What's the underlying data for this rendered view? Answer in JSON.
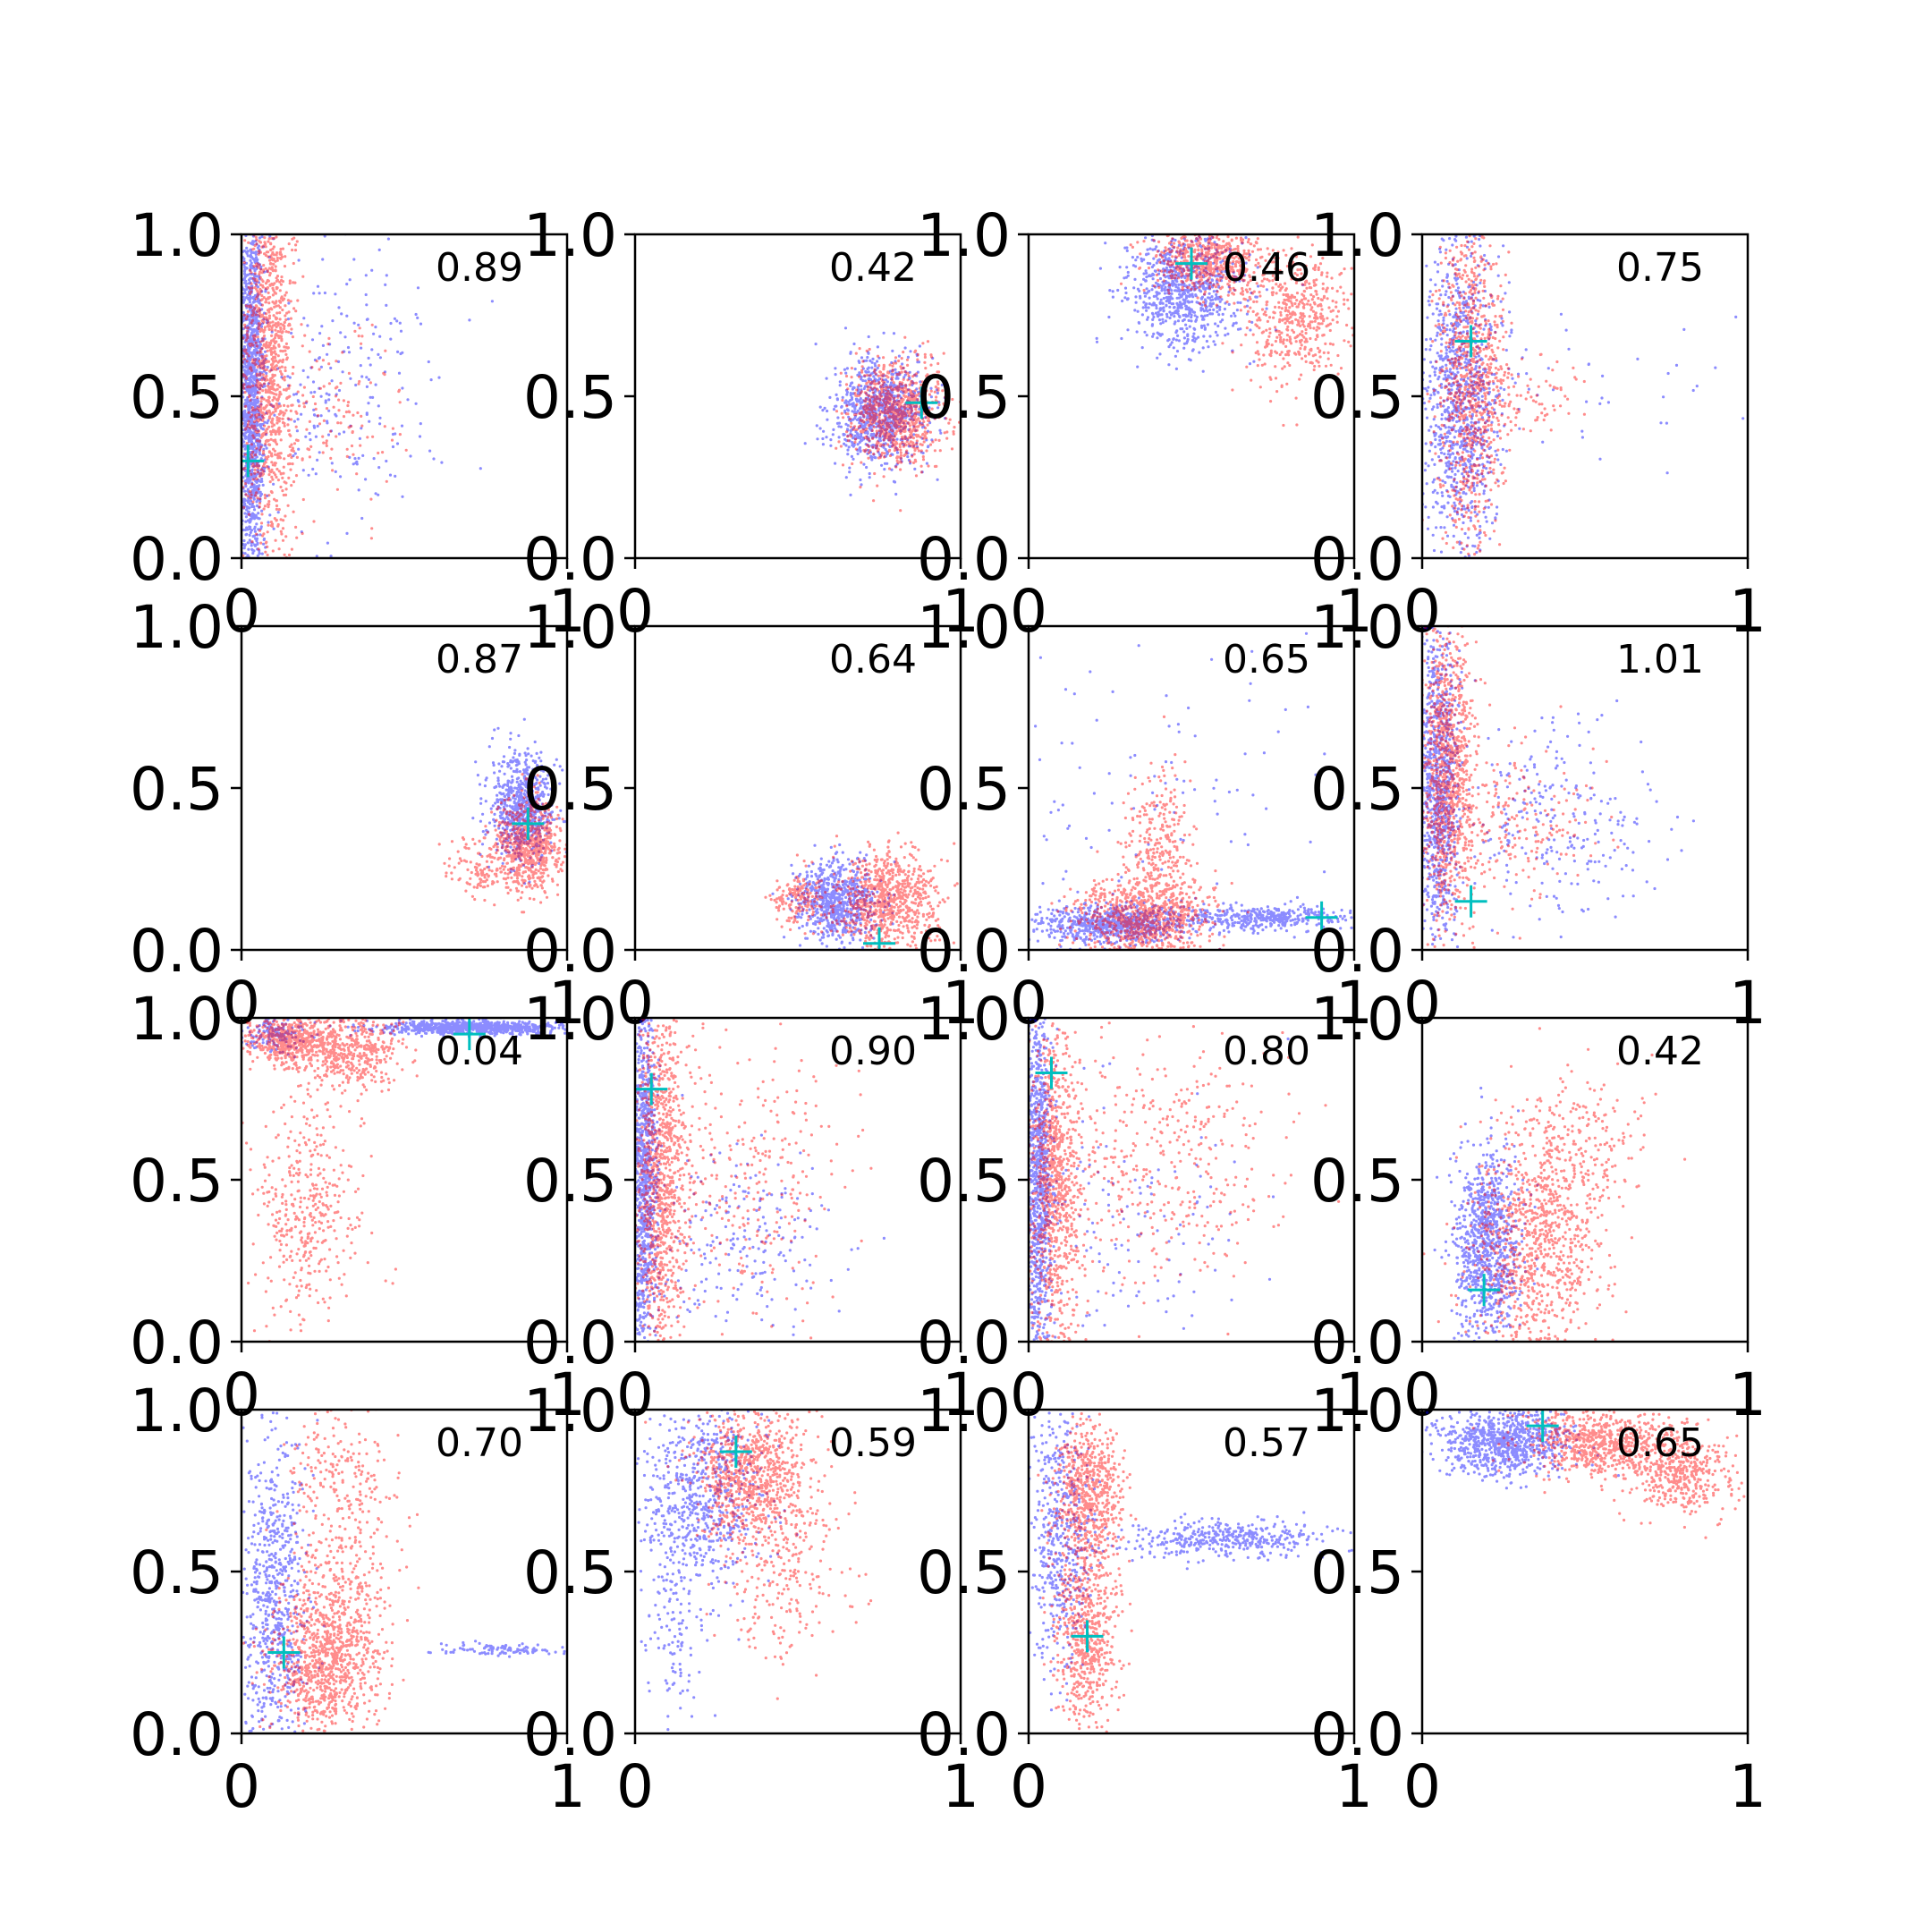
{
  "chart_data": {
    "type": "scatter",
    "layout": {
      "rows": 4,
      "cols": 4
    },
    "colors": {
      "series_a": "#0000ff",
      "series_b": "#ff0000",
      "marker": "#00bfbf",
      "axis": "#000000"
    },
    "marker_shape": "plus",
    "xlim": [
      0,
      1
    ],
    "ylim": [
      0,
      1
    ],
    "x_tick_labels": [
      "0",
      "1"
    ],
    "y_tick_labels": [
      "0.0",
      "0.5",
      "1.0"
    ],
    "panels": [
      {
        "value_label": "0.89",
        "marker": [
          0.02,
          0.3
        ],
        "blue": [
          [
            0.03,
            0.5,
            0.02,
            0.3,
            1400
          ],
          [
            0.3,
            0.5,
            0.15,
            0.25,
            250
          ]
        ],
        "red": [
          [
            0.08,
            0.6,
            0.04,
            0.3,
            1100
          ],
          [
            0.25,
            0.45,
            0.12,
            0.15,
            150
          ]
        ]
      },
      {
        "value_label": "0.42",
        "marker": [
          0.88,
          0.48
        ],
        "blue": [
          [
            0.75,
            0.45,
            0.07,
            0.08,
            900
          ]
        ],
        "red": [
          [
            0.8,
            0.45,
            0.07,
            0.08,
            900
          ]
        ]
      },
      {
        "value_label": "0.46",
        "marker": [
          0.5,
          0.91
        ],
        "blue": [
          [
            0.48,
            0.82,
            0.09,
            0.09,
            800
          ]
        ],
        "red": [
          [
            0.55,
            0.92,
            0.08,
            0.05,
            600
          ],
          [
            0.82,
            0.75,
            0.08,
            0.1,
            500
          ]
        ]
      },
      {
        "value_label": "0.75",
        "marker": [
          0.15,
          0.67
        ],
        "blue": [
          [
            0.12,
            0.5,
            0.06,
            0.25,
            1000
          ],
          [
            0.5,
            0.5,
            0.2,
            0.1,
            40
          ]
        ],
        "red": [
          [
            0.15,
            0.55,
            0.05,
            0.28,
            900
          ],
          [
            0.3,
            0.5,
            0.1,
            0.06,
            100
          ]
        ]
      },
      {
        "value_label": "0.87",
        "marker": [
          0.88,
          0.39
        ],
        "blue": [
          [
            0.86,
            0.44,
            0.05,
            0.08,
            700
          ]
        ],
        "red": [
          [
            0.88,
            0.32,
            0.05,
            0.07,
            700
          ],
          [
            0.72,
            0.25,
            0.05,
            0.05,
            100
          ]
        ]
      },
      {
        "value_label": "0.64",
        "marker": [
          0.75,
          0.02
        ],
        "blue": [
          [
            0.62,
            0.15,
            0.06,
            0.06,
            700
          ]
        ],
        "red": [
          [
            0.78,
            0.15,
            0.08,
            0.08,
            800
          ],
          [
            0.5,
            0.15,
            0.04,
            0.04,
            150
          ]
        ]
      },
      {
        "value_label": "0.65",
        "marker": [
          0.9,
          0.1
        ],
        "blue": [
          [
            0.25,
            0.08,
            0.12,
            0.03,
            700
          ],
          [
            0.72,
            0.1,
            0.15,
            0.02,
            400
          ],
          [
            0.35,
            0.45,
            0.3,
            0.3,
            120
          ]
        ],
        "red": [
          [
            0.35,
            0.1,
            0.1,
            0.06,
            800
          ],
          [
            0.4,
            0.3,
            0.05,
            0.12,
            300
          ]
        ]
      },
      {
        "value_label": "1.01",
        "marker": [
          0.15,
          0.15
        ],
        "blue": [
          [
            0.05,
            0.5,
            0.03,
            0.25,
            900
          ],
          [
            0.4,
            0.4,
            0.15,
            0.15,
            250
          ]
        ],
        "red": [
          [
            0.08,
            0.55,
            0.04,
            0.25,
            1000
          ],
          [
            0.3,
            0.4,
            0.12,
            0.12,
            200
          ]
        ]
      },
      {
        "value_label": "0.04",
        "marker": [
          0.7,
          0.95
        ],
        "blue": [
          [
            0.72,
            0.97,
            0.15,
            0.01,
            800
          ],
          [
            0.1,
            0.95,
            0.05,
            0.03,
            150
          ]
        ],
        "red": [
          [
            0.15,
            0.93,
            0.07,
            0.04,
            600
          ],
          [
            0.35,
            0.9,
            0.08,
            0.06,
            400
          ],
          [
            0.2,
            0.4,
            0.08,
            0.18,
            400
          ]
        ]
      },
      {
        "value_label": "0.90",
        "marker": [
          0.05,
          0.78
        ],
        "blue": [
          [
            0.03,
            0.5,
            0.02,
            0.27,
            900
          ],
          [
            0.35,
            0.3,
            0.15,
            0.15,
            200
          ]
        ],
        "red": [
          [
            0.08,
            0.5,
            0.04,
            0.27,
            1000
          ],
          [
            0.35,
            0.5,
            0.15,
            0.2,
            300
          ]
        ]
      },
      {
        "value_label": "0.80",
        "marker": [
          0.07,
          0.83
        ],
        "blue": [
          [
            0.03,
            0.5,
            0.02,
            0.27,
            900
          ],
          [
            0.3,
            0.35,
            0.2,
            0.2,
            150
          ]
        ],
        "red": [
          [
            0.08,
            0.5,
            0.04,
            0.27,
            900
          ],
          [
            0.4,
            0.55,
            0.18,
            0.2,
            400
          ]
        ]
      },
      {
        "value_label": "0.42",
        "marker": [
          0.19,
          0.16
        ],
        "blue": [
          [
            0.2,
            0.3,
            0.05,
            0.15,
            900
          ]
        ],
        "red": [
          [
            0.35,
            0.3,
            0.1,
            0.18,
            900
          ],
          [
            0.5,
            0.6,
            0.1,
            0.12,
            200
          ]
        ]
      },
      {
        "value_label": "0.70",
        "marker": [
          0.13,
          0.25
        ],
        "blue": [
          [
            0.1,
            0.4,
            0.05,
            0.25,
            700
          ],
          [
            0.8,
            0.26,
            0.1,
            0.01,
            100
          ]
        ],
        "red": [
          [
            0.25,
            0.2,
            0.08,
            0.1,
            700
          ],
          [
            0.3,
            0.4,
            0.08,
            0.15,
            400
          ],
          [
            0.3,
            0.8,
            0.08,
            0.12,
            200
          ]
        ]
      },
      {
        "value_label": "0.59",
        "marker": [
          0.31,
          0.87
        ],
        "blue": [
          [
            0.2,
            0.75,
            0.1,
            0.15,
            700
          ],
          [
            0.12,
            0.3,
            0.05,
            0.15,
            100
          ]
        ],
        "red": [
          [
            0.35,
            0.8,
            0.09,
            0.1,
            800
          ],
          [
            0.45,
            0.5,
            0.1,
            0.15,
            250
          ]
        ]
      },
      {
        "value_label": "0.57",
        "marker": [
          0.18,
          0.3
        ],
        "blue": [
          [
            0.1,
            0.6,
            0.05,
            0.2,
            500
          ],
          [
            0.6,
            0.6,
            0.17,
            0.03,
            400
          ]
        ],
        "red": [
          [
            0.18,
            0.75,
            0.05,
            0.1,
            600
          ],
          [
            0.18,
            0.3,
            0.05,
            0.15,
            600
          ]
        ]
      },
      {
        "value_label": "0.65",
        "marker": [
          0.37,
          0.95
        ],
        "blue": [
          [
            0.25,
            0.9,
            0.1,
            0.05,
            800
          ]
        ],
        "red": [
          [
            0.55,
            0.9,
            0.12,
            0.05,
            700
          ],
          [
            0.8,
            0.8,
            0.08,
            0.06,
            400
          ]
        ]
      }
    ]
  }
}
